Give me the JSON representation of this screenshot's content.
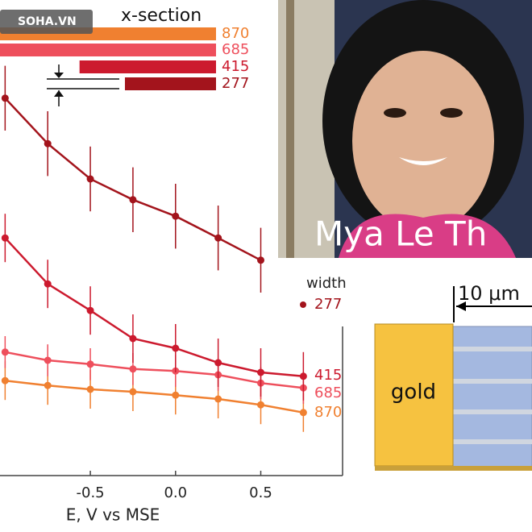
{
  "chart_data": {
    "type": "line",
    "title": "x-section",
    "x_label": "E, V vs MSE",
    "series_label": "width",
    "x": [
      -1.0,
      -0.75,
      -0.5,
      -0.25,
      0,
      0.25,
      0.5,
      0.75
    ],
    "xlim": [
      -1.03,
      0.98
    ],
    "xticks": [
      -0.5,
      {
        "value": 0,
        "label": "0.0"
      },
      0.5
    ],
    "ylim": [
      0,
      100
    ],
    "series": [
      {
        "name": "870",
        "color": "#f08030",
        "values": [
          21.3,
          20.3,
          19.5,
          19,
          18.3,
          17.5,
          16.3,
          14.7
        ],
        "errors": [
          4,
          4,
          4,
          4,
          4,
          4,
          4,
          4
        ]
      },
      {
        "name": "685",
        "color": "#ee4f5c",
        "values": [
          27.2,
          25.5,
          24.7,
          23.7,
          23.3,
          22.5,
          20.8,
          19.8
        ],
        "errors": [
          3.3,
          3.3,
          3.3,
          3.3,
          3.3,
          3.3,
          3.3,
          3.3
        ]
      },
      {
        "name": "415",
        "color": "#cc1a2e",
        "values": [
          50.8,
          41.3,
          35.8,
          30,
          28,
          25,
          23,
          22.2
        ],
        "errors": [
          5,
          5,
          5,
          5,
          5,
          5,
          5,
          5
        ]
      },
      {
        "name": "277",
        "color": "#a3141c",
        "values": [
          79.7,
          70.3,
          63,
          58.7,
          55.3,
          50.8,
          46.2,
          null
        ],
        "errors": [
          6.7,
          6.7,
          6.7,
          6.7,
          6.7,
          6.7,
          6.7,
          null
        ]
      }
    ]
  },
  "photo_caption": "Mya Le Th",
  "diagram": {
    "material": "gold",
    "scale": "10 μm"
  },
  "watermark": "SOHA.VN"
}
